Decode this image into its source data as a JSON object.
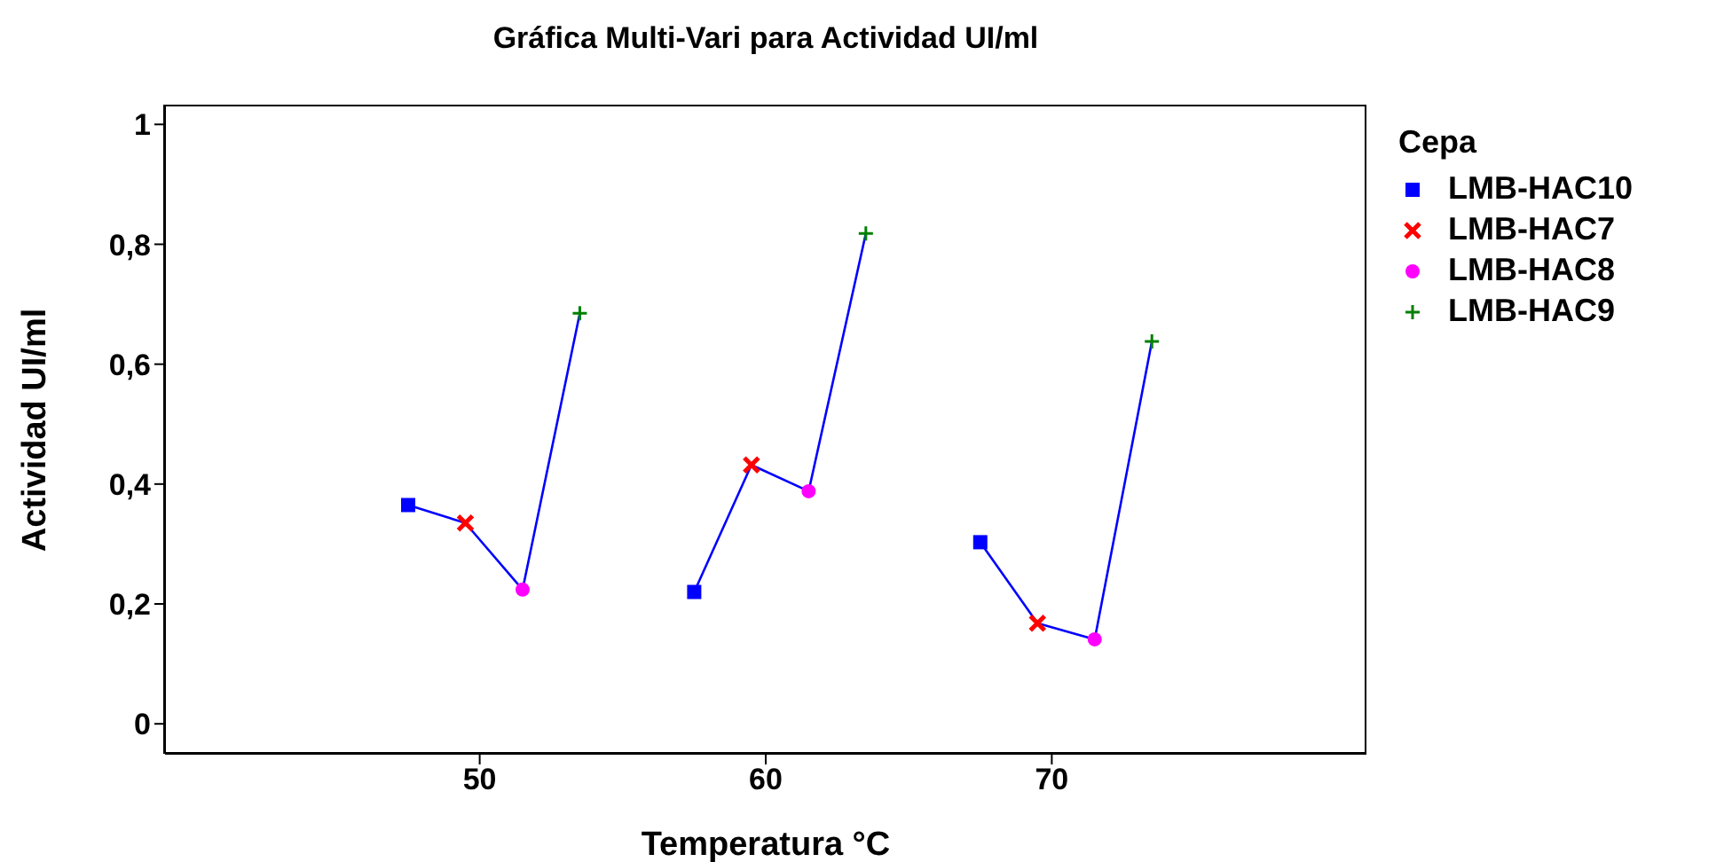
{
  "chart_data": {
    "type": "scatter",
    "title": "Gráfica Multi-Vari para Actividad UI/ml",
    "xlabel": "Temperatura °C",
    "ylabel": "Actividad UI/ml",
    "legend_title": "Cepa",
    "legend": "right",
    "xlim": [
      39,
      81
    ],
    "xticks": [
      50,
      60,
      70
    ],
    "ylim": [
      -0.05,
      1.03
    ],
    "yticks": [
      0,
      {
        "value": 0.2,
        "label": "0,2"
      },
      {
        "value": 0.4,
        "label": "0,4"
      },
      {
        "value": 0.6,
        "label": "0,6"
      },
      {
        "value": 0.8,
        "label": "0,8"
      },
      1
    ],
    "series": [
      {
        "type": "line",
        "color": "#0000ff",
        "marker": "none",
        "x": [
          47.5,
          49.5,
          51.5,
          53.5
        ],
        "values": [
          0.365,
          0.335,
          0.224,
          0.685
        ]
      },
      {
        "type": "line",
        "color": "#0000ff",
        "marker": "none",
        "x": [
          57.5,
          59.5,
          61.5,
          63.5
        ],
        "values": [
          0.22,
          0.432,
          0.388,
          0.818
        ]
      },
      {
        "type": "line",
        "color": "#0000ff",
        "marker": "none",
        "x": [
          67.5,
          69.5,
          71.5,
          73.5
        ],
        "values": [
          0.303,
          0.168,
          0.141,
          0.638
        ]
      },
      {
        "name": "LMB-HAC10",
        "color": "#0000ff",
        "marker": "square",
        "x": [
          47.5,
          57.5,
          67.5
        ],
        "values": [
          0.365,
          0.22,
          0.303
        ]
      },
      {
        "name": "LMB-HAC7",
        "color": "#ff0000",
        "marker": "cross",
        "x": [
          49.5,
          59.5,
          69.5
        ],
        "values": [
          0.335,
          0.432,
          0.168
        ]
      },
      {
        "name": "LMB-HAC8",
        "color": "#ff00ff",
        "marker": "circle",
        "x": [
          51.5,
          61.5,
          71.5
        ],
        "values": [
          0.224,
          0.388,
          0.141
        ]
      },
      {
        "name": "LMB-HAC9",
        "color": "#008000",
        "marker": "plus",
        "x": [
          53.5,
          63.5,
          73.5
        ],
        "values": [
          0.685,
          0.818,
          0.638
        ]
      }
    ]
  }
}
